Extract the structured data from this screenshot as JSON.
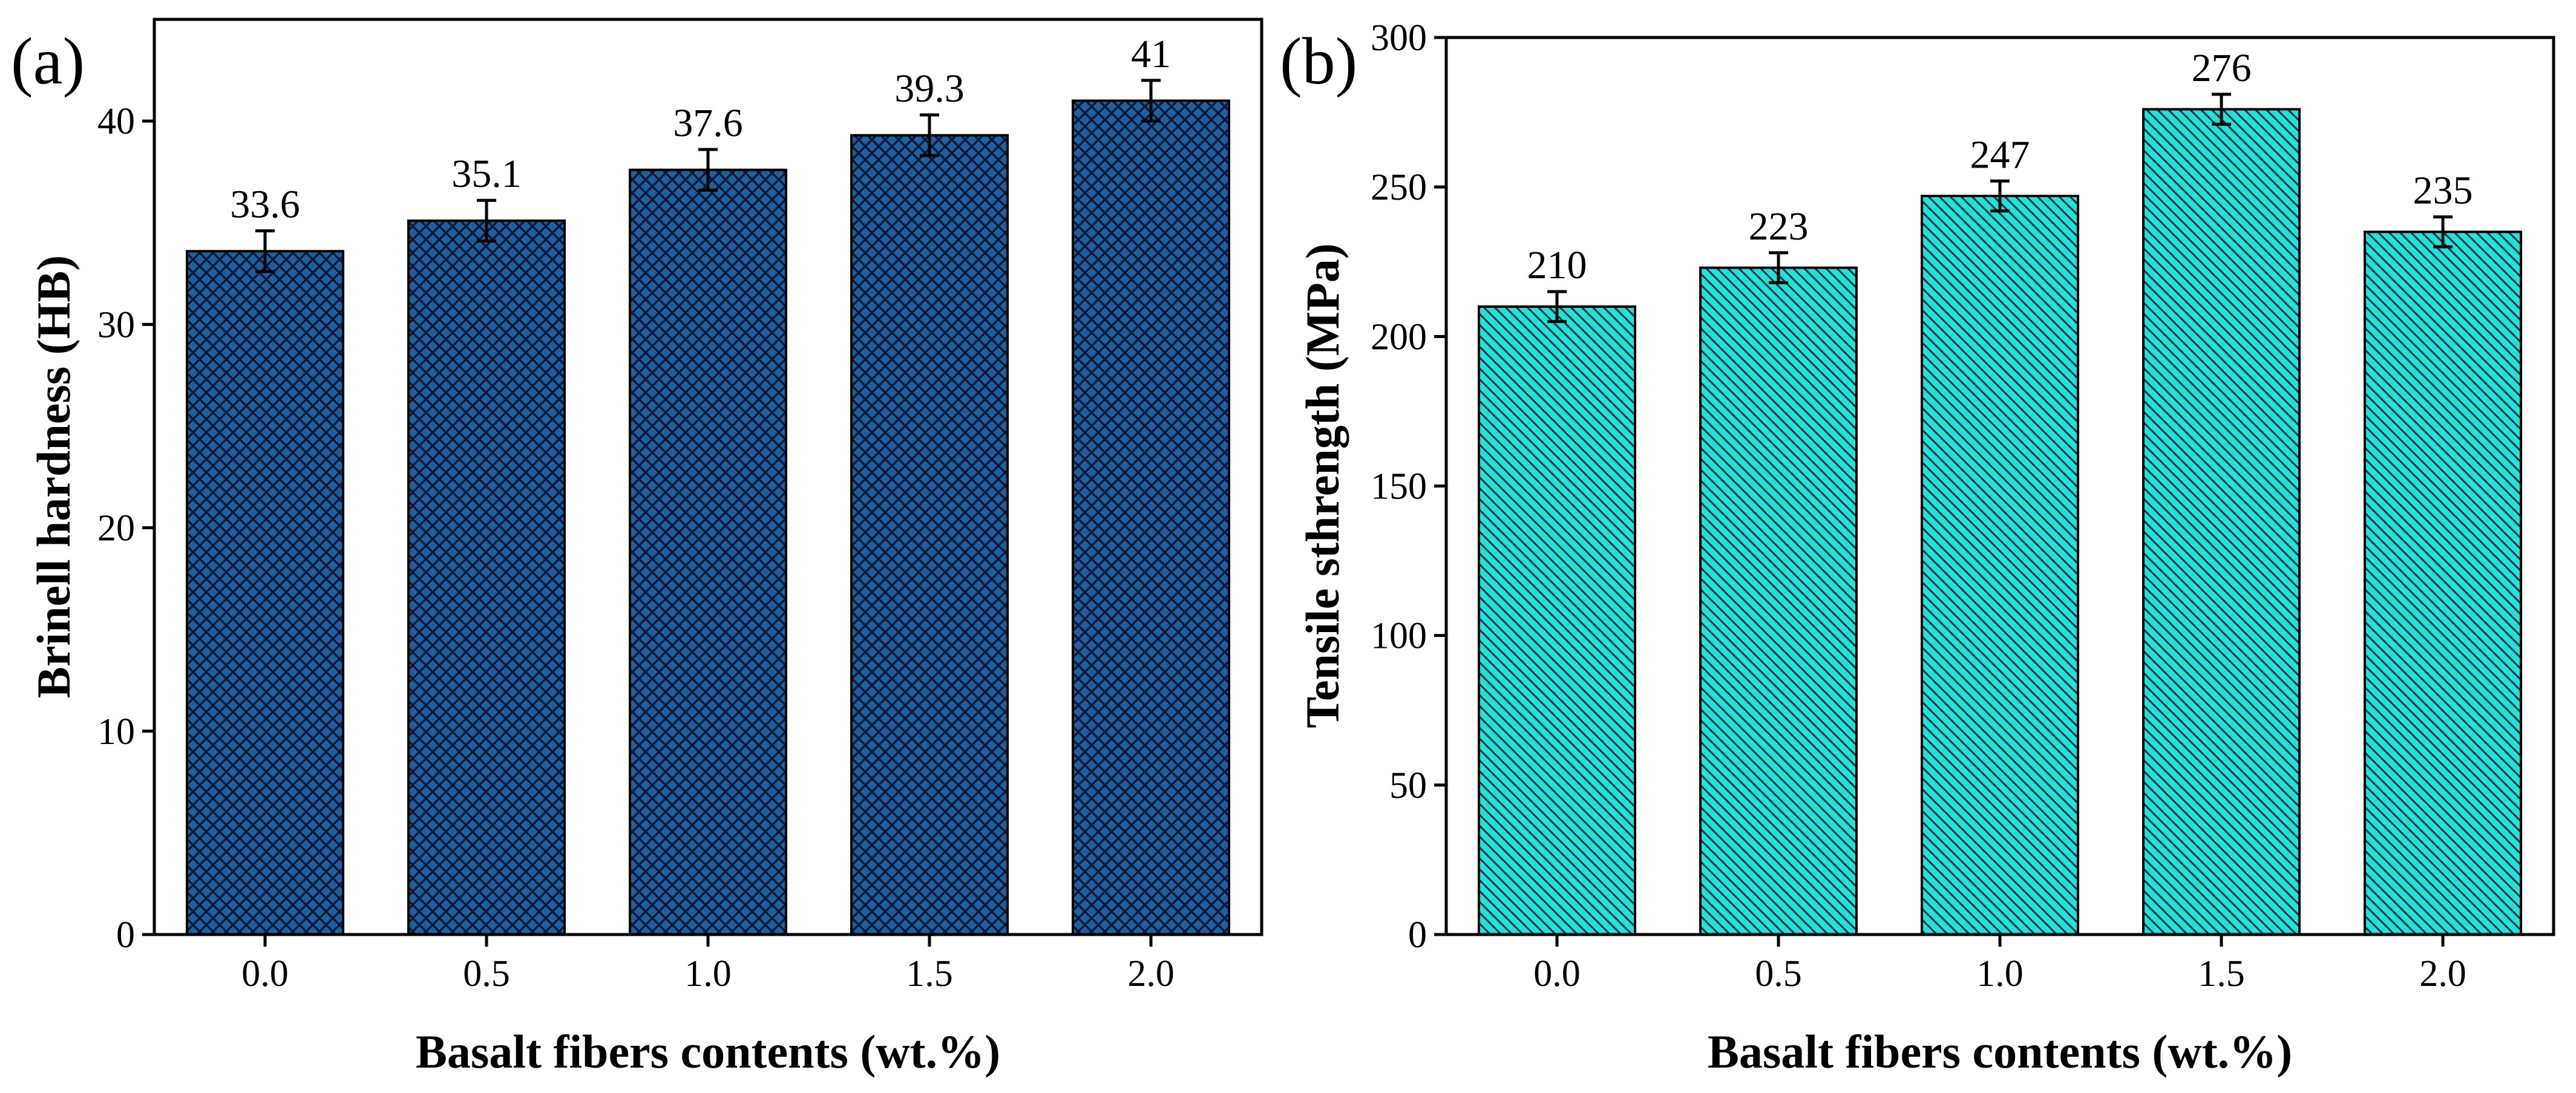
{
  "chart_data": [
    {
      "type": "bar",
      "panel_label": "(a)",
      "title": "",
      "xlabel": "Basalt fibers contents (wt.%)",
      "ylabel": "Brinell hardness (HB)",
      "categories": [
        "0.0",
        "0.5",
        "1.0",
        "1.5",
        "2.0"
      ],
      "values": [
        33.6,
        35.1,
        37.6,
        39.3,
        41
      ],
      "value_labels": [
        "33.6",
        "35.1",
        "37.6",
        "39.3",
        "41"
      ],
      "errors": [
        1.0,
        1.0,
        1.0,
        1.0,
        1.0
      ],
      "ylim": [
        0,
        45
      ],
      "yticks": [
        0,
        10,
        20,
        30,
        40
      ],
      "ytick_labels": [
        "0",
        "10",
        "20",
        "30",
        "40"
      ],
      "bar_color": "#1f5f9e",
      "hatch_color": "#0a1a3a",
      "hatch": "crosshatch",
      "grid": false,
      "legend": "none"
    },
    {
      "type": "bar",
      "panel_label": "(b)",
      "title": "",
      "xlabel": "Basalt fibers contents (wt.%)",
      "ylabel": "Tensile sthrength (MPa)",
      "categories": [
        "0.0",
        "0.5",
        "1.0",
        "1.5",
        "2.0"
      ],
      "values": [
        210,
        223,
        247,
        276,
        235
      ],
      "value_labels": [
        "210",
        "223",
        "247",
        "276",
        "235"
      ],
      "errors": [
        5,
        5,
        5,
        5,
        5
      ],
      "ylim": [
        0,
        300
      ],
      "yticks": [
        0,
        50,
        100,
        150,
        200,
        250,
        300
      ],
      "ytick_labels": [
        "0",
        "50",
        "100",
        "150",
        "200",
        "250",
        "300"
      ],
      "bar_color": "#22e0dc",
      "hatch_color": "#0a3a3a",
      "hatch": "diagonal",
      "grid": false,
      "legend": "none"
    }
  ]
}
